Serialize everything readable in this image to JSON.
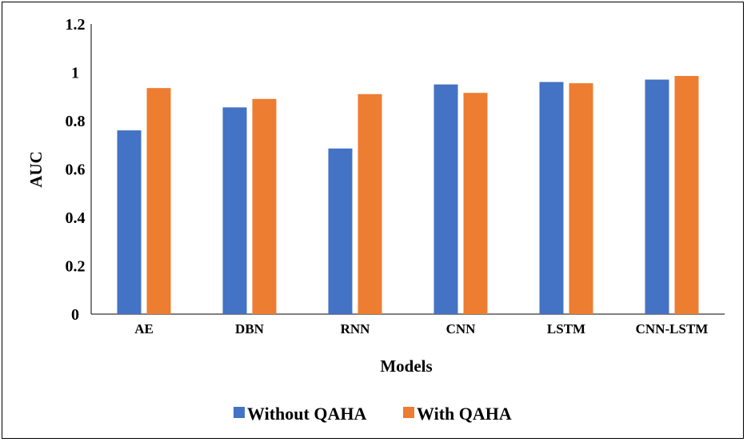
{
  "chart_data": {
    "type": "bar",
    "categories": [
      "AE",
      "DBN",
      "RNN",
      "CNN",
      "LSTM",
      "CNN-LSTM"
    ],
    "series": [
      {
        "name": "Without QAHA",
        "color": "#4472C4",
        "values": [
          0.76,
          0.855,
          0.685,
          0.95,
          0.96,
          0.97
        ]
      },
      {
        "name": "With QAHA",
        "color": "#ED7D31",
        "values": [
          0.935,
          0.89,
          0.91,
          0.915,
          0.955,
          0.985
        ]
      }
    ],
    "xlabel": "Models",
    "ylabel": "AUC",
    "ylim": [
      0,
      1.2
    ],
    "yticks": [
      "0",
      "0.2",
      "0.4",
      "0.6",
      "0.8",
      "1",
      "1.2"
    ],
    "grid": false,
    "legend_position": "bottom"
  }
}
